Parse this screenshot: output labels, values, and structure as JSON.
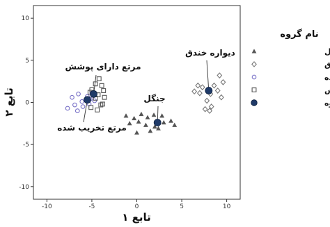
{
  "chart_data": {
    "type": "scatter",
    "xlabel": "تابع ۱",
    "ylabel": "تابع ۲",
    "xlim": [
      -11.5,
      11.5
    ],
    "ylim": [
      -11.5,
      11.5
    ],
    "xticks": [
      -10,
      -5,
      0,
      5,
      10
    ],
    "yticks": [
      -10,
      -5,
      0,
      5,
      10
    ],
    "grid": false,
    "legend": {
      "title": "نام گروه",
      "position": "right"
    },
    "series": [
      {
        "name": "جنگل",
        "marker": "triangle",
        "color": "#555555",
        "points": [
          [
            -1.2,
            -1.6
          ],
          [
            -0.3,
            -1.9
          ],
          [
            0.5,
            -1.4
          ],
          [
            1.2,
            -1.8
          ],
          [
            1.9,
            -1.5
          ],
          [
            2.8,
            -1.6
          ],
          [
            -0.8,
            -2.5
          ],
          [
            0.2,
            -2.3
          ],
          [
            1.0,
            -2.7
          ],
          [
            2.0,
            -2.9
          ],
          [
            3.0,
            -2.4
          ],
          [
            3.8,
            -2.2
          ],
          [
            4.2,
            -2.7
          ],
          [
            1.5,
            -3.4
          ],
          [
            2.4,
            -3.1
          ],
          [
            0.0,
            -3.6
          ]
        ]
      },
      {
        "name": "دیواره خندق",
        "marker": "diamond",
        "color": "#777777",
        "points": [
          [
            6.8,
            2.0
          ],
          [
            7.3,
            1.8
          ],
          [
            8.6,
            2.0
          ],
          [
            9.2,
            3.2
          ],
          [
            9.6,
            2.4
          ],
          [
            7.0,
            1.1
          ],
          [
            6.4,
            1.3
          ],
          [
            7.8,
            0.2
          ],
          [
            8.2,
            1.0
          ],
          [
            9.0,
            1.4
          ],
          [
            9.4,
            0.6
          ],
          [
            7.6,
            -0.8
          ],
          [
            8.3,
            -0.5
          ],
          [
            8.1,
            -1.0
          ]
        ]
      },
      {
        "name": "مرتع تخریب شده",
        "marker": "circle-open",
        "color": "#7a72c8",
        "points": [
          [
            -7.2,
            0.6
          ],
          [
            -6.5,
            1.0
          ],
          [
            -6.1,
            0.1
          ],
          [
            -5.5,
            0.7
          ],
          [
            -5.0,
            1.1
          ],
          [
            -6.9,
            -0.3
          ],
          [
            -6.0,
            -0.5
          ],
          [
            -5.3,
            -0.2
          ],
          [
            -4.7,
            0.2
          ],
          [
            -7.7,
            -0.7
          ],
          [
            -6.6,
            -1.0
          ],
          [
            -5.2,
            0.4
          ]
        ]
      },
      {
        "name": "مرتع دارای پوشش",
        "marker": "square",
        "color": "#555555",
        "points": [
          [
            -4.2,
            2.8
          ],
          [
            -3.9,
            2.0
          ],
          [
            -4.6,
            2.2
          ],
          [
            -5.0,
            1.5
          ],
          [
            -3.7,
            1.4
          ],
          [
            -4.3,
            0.9
          ],
          [
            -3.6,
            0.6
          ],
          [
            -5.2,
            1.2
          ],
          [
            -4.0,
            -0.3
          ],
          [
            -4.6,
            0.5
          ],
          [
            -3.8,
            -0.2
          ],
          [
            -5.1,
            -0.6
          ],
          [
            -4.4,
            -0.9
          ]
        ]
      }
    ],
    "centroids": {
      "name": "مرکز گروه",
      "marker": "circle-filled",
      "color": "#1f3a68",
      "points": [
        {
          "group": "جنگل",
          "x": 2.3,
          "y": -2.4
        },
        {
          "group": "دیواره خندق",
          "x": 8.0,
          "y": 1.4
        },
        {
          "group": "مرتع تخریب شده",
          "x": -5.5,
          "y": 0.3
        },
        {
          "group": "مرتع دارای پوشش",
          "x": -4.8,
          "y": 1.0
        }
      ]
    },
    "annotations": [
      {
        "text": "مرتع دارای پوشش",
        "target": "مرتع دارای پوشش"
      },
      {
        "text": "مرتع تخریب شده",
        "target": "مرتع تخریب شده"
      },
      {
        "text": "جنگل",
        "target": "جنگل"
      },
      {
        "text": "دیواره خندق",
        "target": "دیواره خندق"
      }
    ]
  }
}
